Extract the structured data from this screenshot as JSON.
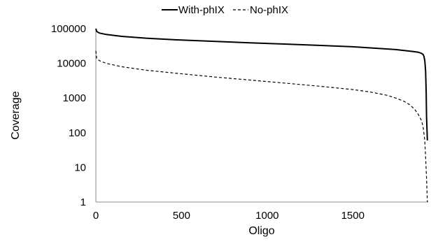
{
  "chart_data": {
    "type": "line",
    "title": "",
    "xlabel": "Oligo",
    "ylabel": "Coverage",
    "xlim": [
      0,
      1940
    ],
    "ylim": [
      1,
      100000
    ],
    "y_scale": "log",
    "x_ticks": [
      0,
      500,
      1000,
      1500
    ],
    "x_tick_labels": [
      "0",
      "500",
      "1000",
      "1500"
    ],
    "y_ticks": [
      1,
      10,
      100,
      1000,
      10000,
      100000
    ],
    "y_tick_labels": [
      "1",
      "10",
      "100",
      "1000",
      "10000",
      "100000"
    ],
    "grid": false,
    "legend_position": "top",
    "series": [
      {
        "name": "With-phIX",
        "color": "#000000",
        "dash": "solid",
        "x": [
          0,
          5,
          20,
          60,
          150,
          300,
          500,
          700,
          900,
          1100,
          1300,
          1500,
          1650,
          1750,
          1800,
          1850,
          1880,
          1900,
          1910,
          1915,
          1920,
          1925,
          1928,
          1930,
          1935
        ],
        "y": [
          100000,
          83000,
          75000,
          68000,
          60000,
          53000,
          47000,
          43000,
          39000,
          36000,
          33000,
          30000,
          27000,
          25000,
          23500,
          22000,
          21000,
          19500,
          18000,
          16000,
          12000,
          6000,
          1500,
          300,
          60
        ]
      },
      {
        "name": "No-phIX",
        "color": "#000000",
        "dash": "dashed",
        "x": [
          0,
          5,
          20,
          60,
          150,
          300,
          500,
          700,
          900,
          1100,
          1300,
          1500,
          1600,
          1700,
          1750,
          1800,
          1830,
          1860,
          1880,
          1900,
          1910,
          1920,
          1925,
          1930,
          1935
        ],
        "y": [
          23000,
          14000,
          12000,
          10000,
          8000,
          6300,
          5000,
          4000,
          3300,
          2700,
          2200,
          1750,
          1500,
          1200,
          1000,
          800,
          650,
          480,
          350,
          230,
          150,
          60,
          20,
          5,
          1
        ]
      }
    ]
  }
}
